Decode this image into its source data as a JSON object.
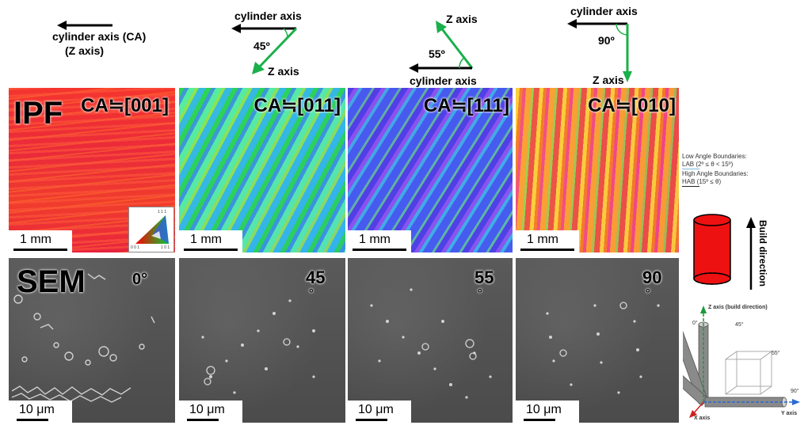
{
  "diagrams": {
    "d1": {
      "cylinder_axis": "cylinder axis (CA)",
      "z_axis": "(Z axis)"
    },
    "d2": {
      "cylinder_axis": "cylinder axis",
      "z_axis": "Z axis",
      "angle": "45º"
    },
    "d3": {
      "cylinder_axis": "cylinder axis",
      "z_axis": "Z axis",
      "angle": "55º"
    },
    "d4": {
      "cylinder_axis": "cylinder axis",
      "z_axis": "Z axis",
      "angle": "90º"
    }
  },
  "ipf": {
    "row_label": "IPF",
    "panels": [
      {
        "title": "CA≒[001]",
        "scale": "1 mm"
      },
      {
        "title": "CA≒[011]",
        "scale": "1 mm"
      },
      {
        "title": "CA≒[111]",
        "scale": "1 mm"
      },
      {
        "title": "CA≒[010]",
        "scale": "1 mm"
      }
    ],
    "triangle_labels": {
      "top": "1 1 1",
      "left": "0 0 1",
      "right": "1 0 1"
    }
  },
  "sem": {
    "row_label": "SEM",
    "panels": [
      {
        "angle": "0°",
        "scale": "10 μm"
      },
      {
        "angle": "45",
        "angle_suffix": "°",
        "scale": "10 μm"
      },
      {
        "angle": "55",
        "angle_suffix": "°",
        "scale": "10 μm"
      },
      {
        "angle": "90",
        "angle_suffix": "°",
        "scale": "10 μm"
      }
    ]
  },
  "legend": {
    "lab_heading": "Low Angle Boundaries:",
    "lab_value": "LAB (2º ≤ θ < 15º)",
    "hab_heading": "High Angle Boundaries:",
    "hab_value": "HAB (15º ≤ θ)",
    "lab_color": "#7fb8d8",
    "hab_color": "#222222"
  },
  "build": {
    "label": "Build direction",
    "cylinder_color": "#ee1111"
  },
  "axes3d": {
    "z": "Z axis (build direction)",
    "x": "X axis",
    "y": "Y axis",
    "a0": "0°",
    "a45": "45°",
    "a55": "55°",
    "a90": "90°"
  }
}
